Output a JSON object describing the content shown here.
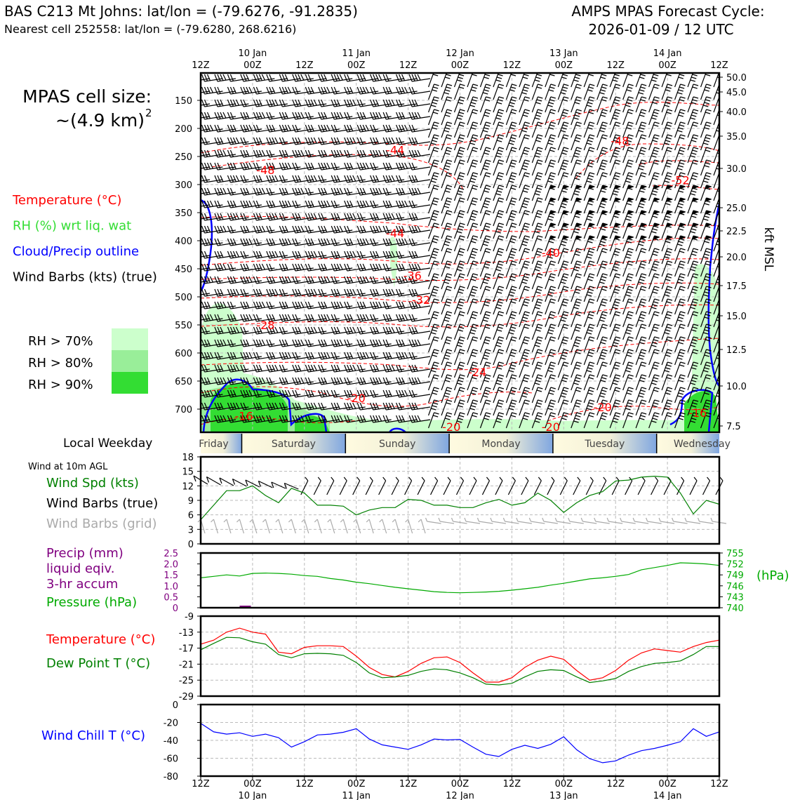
{
  "header": {
    "title_left": "BAS C213 Mt Johns: lat/lon = (-79.6276, -91.2835)",
    "subtitle_left": "Nearest cell 252558: lat/lon = (-79.6280, 268.6216)",
    "title_right_1": "AMPS MPAS Forecast Cycle:",
    "title_right_2": "2026-01-09 / 12 UTC"
  },
  "cell_size": {
    "line1": "MPAS cell size:",
    "line2": "~(4.9 km)",
    "exp": "2"
  },
  "legend_top": [
    {
      "label": "Temperature (°C)",
      "color": "#ff0000"
    },
    {
      "label": "RH (%) wrt liq. wat",
      "color": "#33dd33"
    },
    {
      "label": "Cloud/Precip outline",
      "color": "#0000ff"
    },
    {
      "label": "Wind Barbs (kts) (true)",
      "color": "#000000"
    }
  ],
  "rh_legend": [
    {
      "label": "RH > 70%",
      "color": "#ccffcc"
    },
    {
      "label": "RH > 80%",
      "color": "#99ee99"
    },
    {
      "label": "RH > 90%",
      "color": "#33dd33"
    }
  ],
  "time_axis": {
    "hours": [
      "12Z",
      "00Z",
      "12Z",
      "00Z",
      "12Z",
      "00Z",
      "12Z",
      "00Z",
      "12Z",
      "00Z",
      "12Z"
    ],
    "dates": [
      "",
      "10 Jan",
      "",
      "11 Jan",
      "",
      "12 Jan",
      "",
      "13 Jan",
      "",
      "14 Jan",
      ""
    ]
  },
  "weekday": {
    "label": "Local Weekday",
    "days": [
      "Friday",
      "Saturday",
      "Sunday",
      "Monday",
      "Tuesday",
      "Wednesday"
    ]
  },
  "surface_panel": {
    "header": "Wind at 10m AGL",
    "legend": [
      {
        "label": "Wind Spd (kts)",
        "color": "#008000"
      },
      {
        "label": "Wind Barbs (true)",
        "color": "#000000"
      },
      {
        "label": "Wind Barbs (grid)",
        "color": "#aaaaaa"
      }
    ]
  },
  "precip_panel": {
    "legend": [
      {
        "label": "Precip (mm)",
        "color": "#800080"
      },
      {
        "label": "liquid eqiv.",
        "color": "#800080"
      },
      {
        "label": "3-hr accum",
        "color": "#800080"
      },
      {
        "label": "Pressure (hPa)",
        "color": "#00aa00"
      }
    ],
    "right_unit": "(hPa)"
  },
  "temp_panel": {
    "legend": [
      {
        "label": "Temperature (°C)",
        "color": "#ff0000"
      },
      {
        "label": "Dew Point T (°C)",
        "color": "#008000"
      }
    ]
  },
  "chill_panel": {
    "legend": [
      {
        "label": "Wind Chill T (°C)",
        "color": "#0000ff"
      }
    ]
  },
  "chart_data": [
    {
      "type": "contour",
      "name": "upper_air",
      "ylabel_right": "kft MSL",
      "y_left_ticks": [
        150,
        200,
        250,
        300,
        350,
        400,
        450,
        500,
        550,
        600,
        650,
        700
      ],
      "y_left_labels": [
        "150",
        "200",
        "250",
        "300",
        "350",
        "400",
        "450",
        "500",
        "550",
        "600",
        "650",
        "700"
      ],
      "y_right_ticks": [
        7.5,
        10.0,
        12.5,
        15.0,
        17.5,
        20.0,
        22.5,
        25.0,
        30.0,
        35.0,
        40.0,
        45.0,
        50.0
      ],
      "y_right_labels": [
        "7.5",
        "10.0",
        "12.5",
        "15.0",
        "17.5",
        "20.0",
        "22.5",
        "25.0",
        "30.0",
        "35.0",
        "40.0",
        "45.0",
        "50.0"
      ],
      "x_range_hours": [
        0,
        120
      ],
      "temp_contour_labels": [
        {
          "text": "-44",
          "t": 45,
          "p": 238
        },
        {
          "text": "-48",
          "t": 15,
          "p": 274
        },
        {
          "text": "-48",
          "t": 97,
          "p": 222
        },
        {
          "text": "-52",
          "t": 111,
          "p": 292
        },
        {
          "text": "-44",
          "t": 45,
          "p": 386
        },
        {
          "text": "-40",
          "t": 81,
          "p": 421
        },
        {
          "text": "-36",
          "t": 49,
          "p": 462
        },
        {
          "text": "-32",
          "t": 51,
          "p": 505
        },
        {
          "text": "-28",
          "t": 15,
          "p": 550
        },
        {
          "text": "-24",
          "t": 64,
          "p": 634
        },
        {
          "text": "-20",
          "t": 36,
          "p": 680
        },
        {
          "text": "-20",
          "t": 93,
          "p": 696
        },
        {
          "text": "-16",
          "t": 10,
          "p": 712
        },
        {
          "text": "-16",
          "t": 115,
          "p": 706
        },
        {
          "text": "-20",
          "t": 58,
          "p": 731
        },
        {
          "text": "-20",
          "t": 81,
          "p": 731
        }
      ]
    },
    {
      "type": "line",
      "name": "wind_speed_10m",
      "ylim": [
        0,
        18
      ],
      "yticks": [
        "0",
        "3",
        "6",
        "9",
        "12",
        "15",
        "18"
      ],
      "x_hours": [
        0,
        3,
        6,
        9,
        12,
        15,
        18,
        21,
        24,
        27,
        30,
        33,
        36,
        39,
        42,
        45,
        48,
        51,
        54,
        57,
        60,
        63,
        66,
        69,
        72,
        75,
        78,
        81,
        84,
        87,
        90,
        93,
        96,
        99,
        102,
        105,
        108,
        111,
        114,
        117,
        120
      ],
      "series": [
        {
          "color": "#008000",
          "values": [
            5,
            8,
            11,
            11,
            12,
            10,
            8.5,
            11.5,
            10.5,
            8,
            8,
            7.8,
            6,
            7,
            7.5,
            7.5,
            9.2,
            9,
            8,
            8,
            7.5,
            7.5,
            8.5,
            9.2,
            8,
            8.5,
            10.5,
            9,
            6.5,
            8.5,
            10,
            10.8,
            13,
            13.2,
            13.8,
            14,
            13.8,
            10.5,
            6.2,
            9,
            8.2
          ]
        }
      ]
    },
    {
      "type": "line",
      "name": "precip_pressure",
      "ylim_left": [
        0,
        2.5
      ],
      "yticks_left": [
        "0",
        "0.5",
        "1.0",
        "1.5",
        "2.0",
        "2.5"
      ],
      "ylim_right": [
        740,
        755
      ],
      "yticks_right": [
        "740",
        "743",
        "746",
        "749",
        "752",
        "755"
      ],
      "x_hours": [
        0,
        3,
        6,
        9,
        12,
        15,
        18,
        21,
        24,
        27,
        30,
        33,
        36,
        39,
        42,
        45,
        48,
        51,
        54,
        57,
        60,
        63,
        66,
        69,
        72,
        75,
        78,
        81,
        84,
        87,
        90,
        93,
        96,
        99,
        102,
        105,
        108,
        111,
        114,
        117,
        120
      ],
      "series": [
        {
          "color": "#00aa00",
          "values": [
            748.2,
            748.6,
            749.0,
            748.7,
            749.4,
            749.5,
            749.4,
            749.2,
            748.8,
            748.6,
            748.0,
            747.6,
            747.0,
            746.6,
            746.1,
            745.6,
            745.2,
            744.8,
            744.4,
            744.2,
            744.1,
            744.2,
            744.3,
            744.5,
            744.8,
            745.2,
            745.6,
            746.2,
            746.7,
            747.3,
            747.9,
            748.2,
            748.6,
            749.1,
            750.4,
            751.0,
            751.6,
            752.3,
            752.2,
            752.0,
            751.6
          ]
        }
      ],
      "precip_bars": [
        {
          "x": 9.5,
          "value": 0.03
        }
      ]
    },
    {
      "type": "line",
      "name": "temperature",
      "ylim": [
        -29,
        -9
      ],
      "yticks": [
        "-29",
        "-25",
        "-21",
        "-17",
        "-13",
        "-9"
      ],
      "x_hours": [
        0,
        3,
        6,
        9,
        12,
        15,
        18,
        21,
        24,
        27,
        30,
        33,
        36,
        39,
        42,
        45,
        48,
        51,
        54,
        57,
        60,
        63,
        66,
        69,
        72,
        75,
        78,
        81,
        84,
        87,
        90,
        93,
        96,
        99,
        102,
        105,
        108,
        111,
        114,
        117,
        120
      ],
      "series": [
        {
          "name": "Temperature (°C)",
          "color": "#ff0000",
          "values": [
            -16,
            -15,
            -13,
            -12,
            -13,
            -13.5,
            -18,
            -18.4,
            -16.8,
            -16.4,
            -16.4,
            -16.6,
            -19,
            -21.8,
            -23.6,
            -24.2,
            -22.8,
            -20.8,
            -19.4,
            -19.2,
            -20.6,
            -23.2,
            -25.5,
            -25.5,
            -24.4,
            -21.8,
            -20.0,
            -19.0,
            -19.8,
            -22.6,
            -25.0,
            -24.4,
            -22.6,
            -20.0,
            -18.2,
            -17.2,
            -17.6,
            -18.0,
            -16.6,
            -15.6,
            -15.0
          ]
        },
        {
          "name": "Dew Point T (°C)",
          "color": "#008000",
          "values": [
            -17.4,
            -15.8,
            -14.3,
            -14.4,
            -15.4,
            -16,
            -18.6,
            -19.4,
            -18.4,
            -18.3,
            -18.4,
            -18.8,
            -20.6,
            -23.2,
            -24.4,
            -24.2,
            -23.8,
            -22.8,
            -22.2,
            -22.4,
            -23.2,
            -24.4,
            -26,
            -26.2,
            -25.8,
            -24.2,
            -22.8,
            -22.4,
            -22.6,
            -24.2,
            -25.6,
            -25.2,
            -24.6,
            -22.8,
            -21.6,
            -20.8,
            -20.6,
            -20.2,
            -18.6,
            -16.6,
            -16.6
          ]
        }
      ]
    },
    {
      "type": "line",
      "name": "wind_chill",
      "ylim": [
        -80,
        0
      ],
      "yticks": [
        "-80",
        "-60",
        "-40",
        "-20",
        "0"
      ],
      "x_hours": [
        0,
        3,
        6,
        9,
        12,
        15,
        18,
        21,
        24,
        27,
        30,
        33,
        36,
        39,
        42,
        45,
        48,
        51,
        54,
        57,
        60,
        63,
        66,
        69,
        72,
        75,
        78,
        81,
        84,
        87,
        90,
        93,
        96,
        99,
        102,
        105,
        108,
        111,
        114,
        117,
        120
      ],
      "series": [
        {
          "color": "#0000ff",
          "values": [
            -21,
            -30.5,
            -33,
            -31.5,
            -35.5,
            -33,
            -37,
            -47.5,
            -41.5,
            -34,
            -33,
            -31,
            -27,
            -38.5,
            -45,
            -47.5,
            -50,
            -45,
            -38.5,
            -39.5,
            -39,
            -47.5,
            -55.5,
            -58,
            -50,
            -45.5,
            -49,
            -44.5,
            -36,
            -50.5,
            -60.5,
            -65,
            -63,
            -56.5,
            -51.5,
            -49,
            -45.5,
            -41.5,
            -27,
            -35.5,
            -30.5
          ]
        }
      ]
    }
  ]
}
